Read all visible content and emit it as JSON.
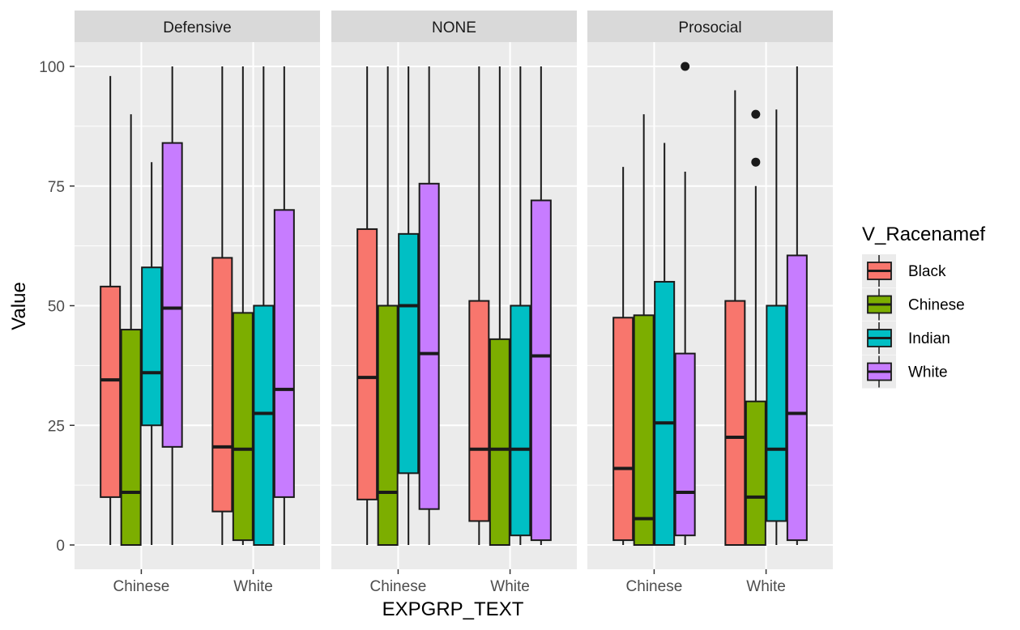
{
  "chart_data": {
    "type": "boxplot",
    "xlabel": "EXPGRP_TEXT",
    "ylabel": "Value",
    "ylim": [
      -5,
      108
    ],
    "yticks": [
      0,
      25,
      50,
      75,
      100
    ],
    "categories": [
      "Chinese",
      "White"
    ],
    "legend": {
      "title": "V_Racenamef",
      "position": "right",
      "entries": [
        {
          "name": "Black",
          "color": "#F8766D"
        },
        {
          "name": "Chinese",
          "color": "#7CAE00"
        },
        {
          "name": "Indian",
          "color": "#00BFC4"
        },
        {
          "name": "White",
          "color": "#C77CFF"
        }
      ]
    },
    "grid": true,
    "panels": [
      {
        "title": "Defensive",
        "groups": [
          {
            "category": "Chinese",
            "boxes": [
              {
                "series": "Black",
                "min": 0,
                "q1": 10,
                "median": 34.5,
                "q3": 54,
                "max": 98,
                "outliers": []
              },
              {
                "series": "Chinese",
                "min": 0,
                "q1": 0,
                "median": 11,
                "q3": 45,
                "max": 90,
                "outliers": []
              },
              {
                "series": "Indian",
                "min": 0,
                "q1": 25,
                "median": 36,
                "q3": 58,
                "max": 80,
                "outliers": []
              },
              {
                "series": "White",
                "min": 0,
                "q1": 20.5,
                "median": 49.5,
                "q3": 84,
                "max": 100,
                "outliers": []
              }
            ]
          },
          {
            "category": "White",
            "boxes": [
              {
                "series": "Black",
                "min": 0,
                "q1": 7,
                "median": 20.5,
                "q3": 60,
                "max": 100,
                "outliers": []
              },
              {
                "series": "Chinese",
                "min": 0,
                "q1": 1,
                "median": 20,
                "q3": 48.5,
                "max": 100,
                "outliers": []
              },
              {
                "series": "Indian",
                "min": 0,
                "q1": 0,
                "median": 27.5,
                "q3": 50,
                "max": 100,
                "outliers": []
              },
              {
                "series": "White",
                "min": 0,
                "q1": 10,
                "median": 32.5,
                "q3": 70,
                "max": 100,
                "outliers": []
              }
            ]
          }
        ]
      },
      {
        "title": "NONE",
        "groups": [
          {
            "category": "Chinese",
            "boxes": [
              {
                "series": "Black",
                "min": 0,
                "q1": 9.5,
                "median": 35,
                "q3": 66,
                "max": 100,
                "outliers": []
              },
              {
                "series": "Chinese",
                "min": 0,
                "q1": 0,
                "median": 11,
                "q3": 50,
                "max": 100,
                "outliers": []
              },
              {
                "series": "Indian",
                "min": 0,
                "q1": 15,
                "median": 50,
                "q3": 65,
                "max": 100,
                "outliers": []
              },
              {
                "series": "White",
                "min": 0,
                "q1": 7.5,
                "median": 40,
                "q3": 75.5,
                "max": 100,
                "outliers": []
              }
            ]
          },
          {
            "category": "White",
            "boxes": [
              {
                "series": "Black",
                "min": 0,
                "q1": 5,
                "median": 20,
                "q3": 51,
                "max": 100,
                "outliers": []
              },
              {
                "series": "Chinese",
                "min": 0,
                "q1": 0,
                "median": 20,
                "q3": 43,
                "max": 100,
                "outliers": []
              },
              {
                "series": "Indian",
                "min": 0,
                "q1": 2,
                "median": 20,
                "q3": 50,
                "max": 100,
                "outliers": []
              },
              {
                "series": "White",
                "min": 0,
                "q1": 1,
                "median": 39.5,
                "q3": 72,
                "max": 100,
                "outliers": []
              }
            ]
          }
        ]
      },
      {
        "title": "Prosocial",
        "groups": [
          {
            "category": "Chinese",
            "boxes": [
              {
                "series": "Black",
                "min": 0,
                "q1": 1,
                "median": 16,
                "q3": 47.5,
                "max": 79,
                "outliers": []
              },
              {
                "series": "Chinese",
                "min": 0,
                "q1": 0,
                "median": 5.5,
                "q3": 48,
                "max": 90,
                "outliers": []
              },
              {
                "series": "Indian",
                "min": 0,
                "q1": 0,
                "median": 25.5,
                "q3": 55,
                "max": 84,
                "outliers": []
              },
              {
                "series": "White",
                "min": 0,
                "q1": 2,
                "median": 11,
                "q3": 40,
                "max": 78,
                "outliers": [
                  100
                ]
              }
            ]
          },
          {
            "category": "White",
            "boxes": [
              {
                "series": "Black",
                "min": 0,
                "q1": 0,
                "median": 22.5,
                "q3": 51,
                "max": 95,
                "outliers": []
              },
              {
                "series": "Chinese",
                "min": 0,
                "q1": 0,
                "median": 10,
                "q3": 30,
                "max": 75,
                "outliers": [
                  80,
                  90
                ]
              },
              {
                "series": "Indian",
                "min": 0,
                "q1": 5,
                "median": 20,
                "q3": 50,
                "max": 91,
                "outliers": []
              },
              {
                "series": "White",
                "min": 0,
                "q1": 1,
                "median": 27.5,
                "q3": 60.5,
                "max": 100,
                "outliers": []
              }
            ]
          }
        ]
      }
    ]
  }
}
